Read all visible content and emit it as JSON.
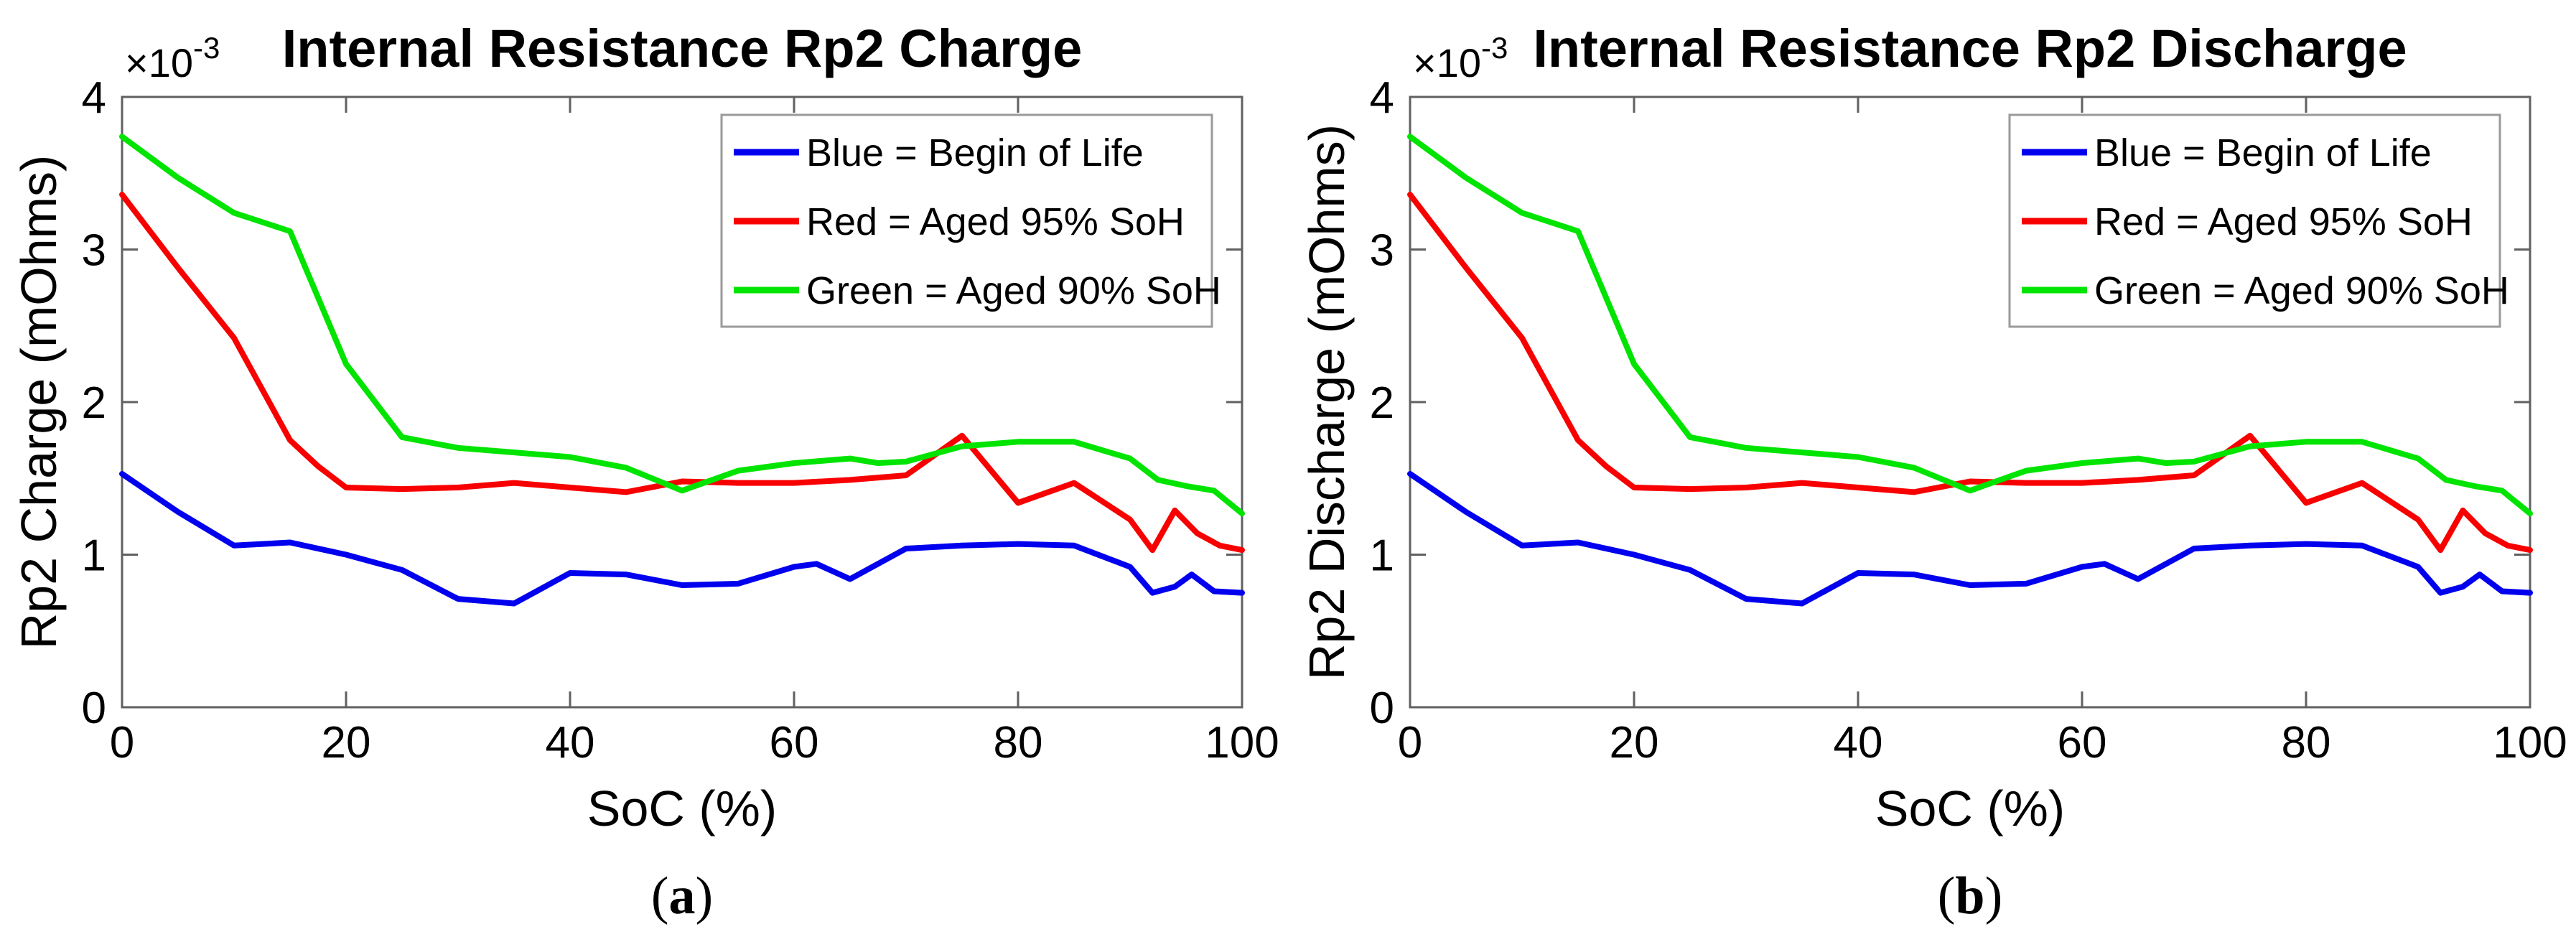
{
  "page": {
    "background": "#ffffff"
  },
  "colors": {
    "blue": "#0000EE",
    "red": "#F80000",
    "green": "#00E400",
    "axis": "#606060",
    "tick_text": "#111111",
    "legend_border": "#9a9a9a",
    "legend_bg": "#ffffff"
  },
  "chart_data": [
    {
      "type": "line",
      "id": "a",
      "title": "Internal Resistance Rp2 Charge",
      "xlabel": "SoC (%)",
      "ylabel": "Rp2 Charge (mOhms)",
      "caption_open": "(",
      "caption_letter": "a",
      "caption_close": ")",
      "y_exponent_base": "×10",
      "y_exponent_power": "-3",
      "xlim": [
        0,
        100
      ],
      "ylim": [
        0,
        4
      ],
      "x_ticks": [
        0,
        20,
        40,
        60,
        80,
        100
      ],
      "y_ticks": [
        0,
        1,
        2,
        3,
        4
      ],
      "grid": false,
      "legend_position": "upper right",
      "legend": [
        {
          "label": "Blue = Begin of Life",
          "color_key": "blue"
        },
        {
          "label": "Red = Aged 95% SoH",
          "color_key": "red"
        },
        {
          "label": "Green = Aged 90% SoH",
          "color_key": "green"
        }
      ],
      "series": [
        {
          "name": "Begin of Life",
          "color_key": "blue",
          "x": [
            0,
            5,
            10,
            15,
            20,
            25,
            30,
            35,
            40,
            45,
            50,
            55,
            60,
            62,
            65,
            70,
            75,
            80,
            85,
            90,
            92,
            94,
            95.5,
            97.5,
            100
          ],
          "y": [
            1.53,
            1.28,
            1.06,
            1.08,
            1.0,
            0.9,
            0.71,
            0.68,
            0.88,
            0.87,
            0.8,
            0.81,
            0.92,
            0.94,
            0.84,
            1.04,
            1.06,
            1.07,
            1.06,
            0.92,
            0.75,
            0.79,
            0.87,
            0.76,
            0.75
          ]
        },
        {
          "name": "Aged 95% SoH",
          "color_key": "red",
          "x": [
            0,
            5,
            10,
            15,
            17.5,
            20,
            25,
            30,
            35,
            40,
            45,
            50,
            55,
            60,
            65,
            70,
            75,
            80,
            85,
            90,
            92,
            94,
            96,
            98,
            100
          ],
          "y": [
            3.36,
            2.88,
            2.42,
            1.75,
            1.58,
            1.44,
            1.43,
            1.44,
            1.47,
            1.44,
            1.41,
            1.48,
            1.47,
            1.47,
            1.49,
            1.52,
            1.78,
            1.34,
            1.47,
            1.23,
            1.03,
            1.29,
            1.14,
            1.06,
            1.03
          ]
        },
        {
          "name": "Aged 90% SoH",
          "color_key": "green",
          "x": [
            0,
            5,
            10,
            15,
            20,
            25,
            30,
            35,
            40,
            45,
            50,
            55,
            60,
            65,
            67.5,
            70,
            75,
            80,
            85,
            90,
            92.5,
            95,
            97.5,
            100
          ],
          "y": [
            3.74,
            3.47,
            3.24,
            3.12,
            2.25,
            1.77,
            1.7,
            1.67,
            1.64,
            1.57,
            1.42,
            1.55,
            1.6,
            1.63,
            1.6,
            1.61,
            1.71,
            1.74,
            1.74,
            1.63,
            1.49,
            1.45,
            1.42,
            1.27
          ]
        }
      ]
    },
    {
      "type": "line",
      "id": "b",
      "title": "Internal Resistance Rp2 Discharge",
      "xlabel": "SoC (%)",
      "ylabel": "Rp2 Discharge (mOhms)",
      "caption_open": "(",
      "caption_letter": "b",
      "caption_close": ")",
      "y_exponent_base": "×10",
      "y_exponent_power": "-3",
      "xlim": [
        0,
        100
      ],
      "ylim": [
        0,
        4
      ],
      "x_ticks": [
        0,
        20,
        40,
        60,
        80,
        100
      ],
      "y_ticks": [
        0,
        1,
        2,
        3,
        4
      ],
      "grid": false,
      "legend_position": "upper right",
      "legend": [
        {
          "label": "Blue = Begin of Life",
          "color_key": "blue"
        },
        {
          "label": "Red = Aged 95% SoH",
          "color_key": "red"
        },
        {
          "label": "Green = Aged 90% SoH",
          "color_key": "green"
        }
      ],
      "series": [
        {
          "name": "Begin of Life",
          "color_key": "blue",
          "x": [
            0,
            5,
            10,
            15,
            20,
            25,
            30,
            35,
            40,
            45,
            50,
            55,
            60,
            62,
            65,
            70,
            75,
            80,
            85,
            90,
            92,
            94,
            95.5,
            97.5,
            100
          ],
          "y": [
            1.53,
            1.28,
            1.06,
            1.08,
            1.0,
            0.9,
            0.71,
            0.68,
            0.88,
            0.87,
            0.8,
            0.81,
            0.92,
            0.94,
            0.84,
            1.04,
            1.06,
            1.07,
            1.06,
            0.92,
            0.75,
            0.79,
            0.87,
            0.76,
            0.75
          ]
        },
        {
          "name": "Aged 95% SoH",
          "color_key": "red",
          "x": [
            0,
            5,
            10,
            15,
            17.5,
            20,
            25,
            30,
            35,
            40,
            45,
            50,
            55,
            60,
            65,
            70,
            75,
            80,
            85,
            90,
            92,
            94,
            96,
            98,
            100
          ],
          "y": [
            3.36,
            2.88,
            2.42,
            1.75,
            1.58,
            1.44,
            1.43,
            1.44,
            1.47,
            1.44,
            1.41,
            1.48,
            1.47,
            1.47,
            1.49,
            1.52,
            1.78,
            1.34,
            1.47,
            1.23,
            1.03,
            1.29,
            1.14,
            1.06,
            1.03
          ]
        },
        {
          "name": "Aged 90% SoH",
          "color_key": "green",
          "x": [
            0,
            5,
            10,
            15,
            20,
            25,
            30,
            35,
            40,
            45,
            50,
            55,
            60,
            65,
            67.5,
            70,
            75,
            80,
            85,
            90,
            92.5,
            95,
            97.5,
            100
          ],
          "y": [
            3.74,
            3.47,
            3.24,
            3.12,
            2.25,
            1.77,
            1.7,
            1.67,
            1.64,
            1.57,
            1.42,
            1.55,
            1.6,
            1.63,
            1.6,
            1.61,
            1.71,
            1.74,
            1.74,
            1.63,
            1.49,
            1.45,
            1.42,
            1.27
          ]
        }
      ]
    }
  ]
}
